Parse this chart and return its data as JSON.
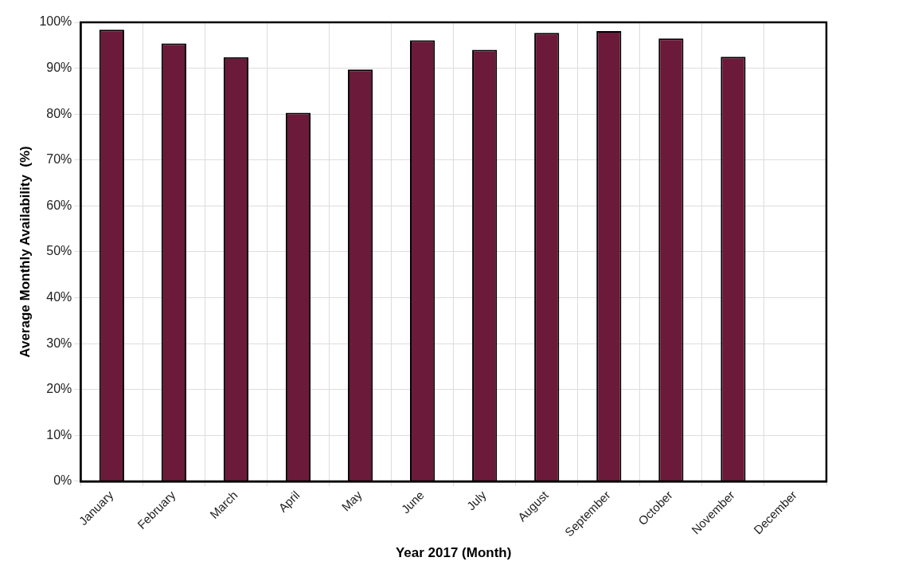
{
  "chart_data": {
    "type": "bar",
    "xlabel": "Year 2017 (Month)",
    "ylabel": "Average Monthly Availability  (%)",
    "categories": [
      "January",
      "February",
      "March",
      "April",
      "May",
      "June",
      "July",
      "August",
      "September",
      "October",
      "November",
      "December"
    ],
    "series": [
      {
        "color": "#6b1a3a",
        "values": [
          98.4,
          95.4,
          92.4,
          80.3,
          89.7,
          96.1,
          94.0,
          97.7,
          98.1,
          96.5,
          92.5,
          null
        ]
      }
    ],
    "ylim": [
      0,
      100
    ],
    "yticks": [
      {
        "value": 0,
        "label": "0%"
      },
      {
        "value": 10,
        "label": "10%"
      },
      {
        "value": 20,
        "label": "20%"
      },
      {
        "value": 30,
        "label": "30%"
      },
      {
        "value": 40,
        "label": "40%"
      },
      {
        "value": 50,
        "label": "50%"
      },
      {
        "value": 60,
        "label": "60%"
      },
      {
        "value": 70,
        "label": "70%"
      },
      {
        "value": 80,
        "label": "80%"
      },
      {
        "value": 90,
        "label": "90%"
      },
      {
        "value": 100,
        "label": "100%"
      }
    ],
    "grid": true,
    "legend": false
  }
}
